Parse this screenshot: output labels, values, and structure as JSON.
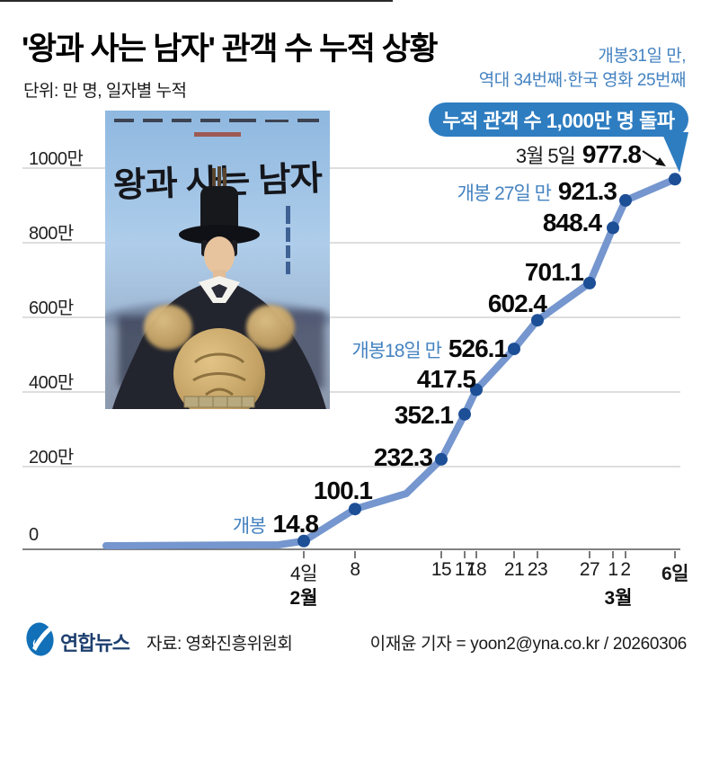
{
  "header": {
    "title": "'왕과 사는 남자' 관객 수 누적 상황",
    "subtitle": "단위: 만 명, 일자별 누적",
    "record_note_line1": "개봉31일 만,",
    "record_note_line2": "역대 34번째·한국 영화 25번째",
    "milestone_bubble": "누적 관객 수 1,000만 명 돌파"
  },
  "poster": {
    "calligraphy_title": "왕과 사는 남자"
  },
  "chart_data": {
    "type": "line",
    "title": "'왕과 사는 남자' 관객 수 누적 상황",
    "unit_note": "단위: 만 명, 일자별 누적",
    "x_tick_labels": [
      "4일",
      "8",
      "15",
      "17",
      "18",
      "21",
      "23",
      "27",
      "1",
      "2",
      "6일"
    ],
    "month_labels": [
      "2월",
      "3월"
    ],
    "dates": [
      "2월 4일",
      "2월 8일",
      "2월 15일",
      "2월 17일",
      "2월 18일",
      "2월 21일",
      "2월 23일",
      "2월 27일",
      "3월 1일",
      "3월 2일",
      "3월 6일"
    ],
    "values": [
      14.8,
      100.1,
      232.3,
      352.1,
      417.5,
      526.1,
      602.4,
      701.1,
      848.4,
      921.3,
      977.8
    ],
    "point_label_prefixes": [
      "개봉",
      "",
      "",
      "",
      "",
      "개봉18일 만",
      "",
      "",
      "",
      "개봉 27일 만",
      "3월 5일"
    ],
    "y_tick_labels": [
      "0",
      "200만",
      "400만",
      "600만",
      "800만",
      "1000만"
    ],
    "ylim": [
      0,
      1000
    ],
    "grid": "horizontal",
    "legend": "none",
    "colors": {
      "line": "#7596ce",
      "dot": "#1d4f97",
      "grid": "#cbcbcb",
      "axis": "#58595b",
      "accent_blue": "#4583c1",
      "bubble_blue": "#2e7dc1"
    }
  },
  "footer": {
    "brand": "연합뉴스",
    "source": "자료: 영화진흥위원회",
    "byline": "이재윤 기자 = yoon2@yna.co.kr / 20260306"
  }
}
